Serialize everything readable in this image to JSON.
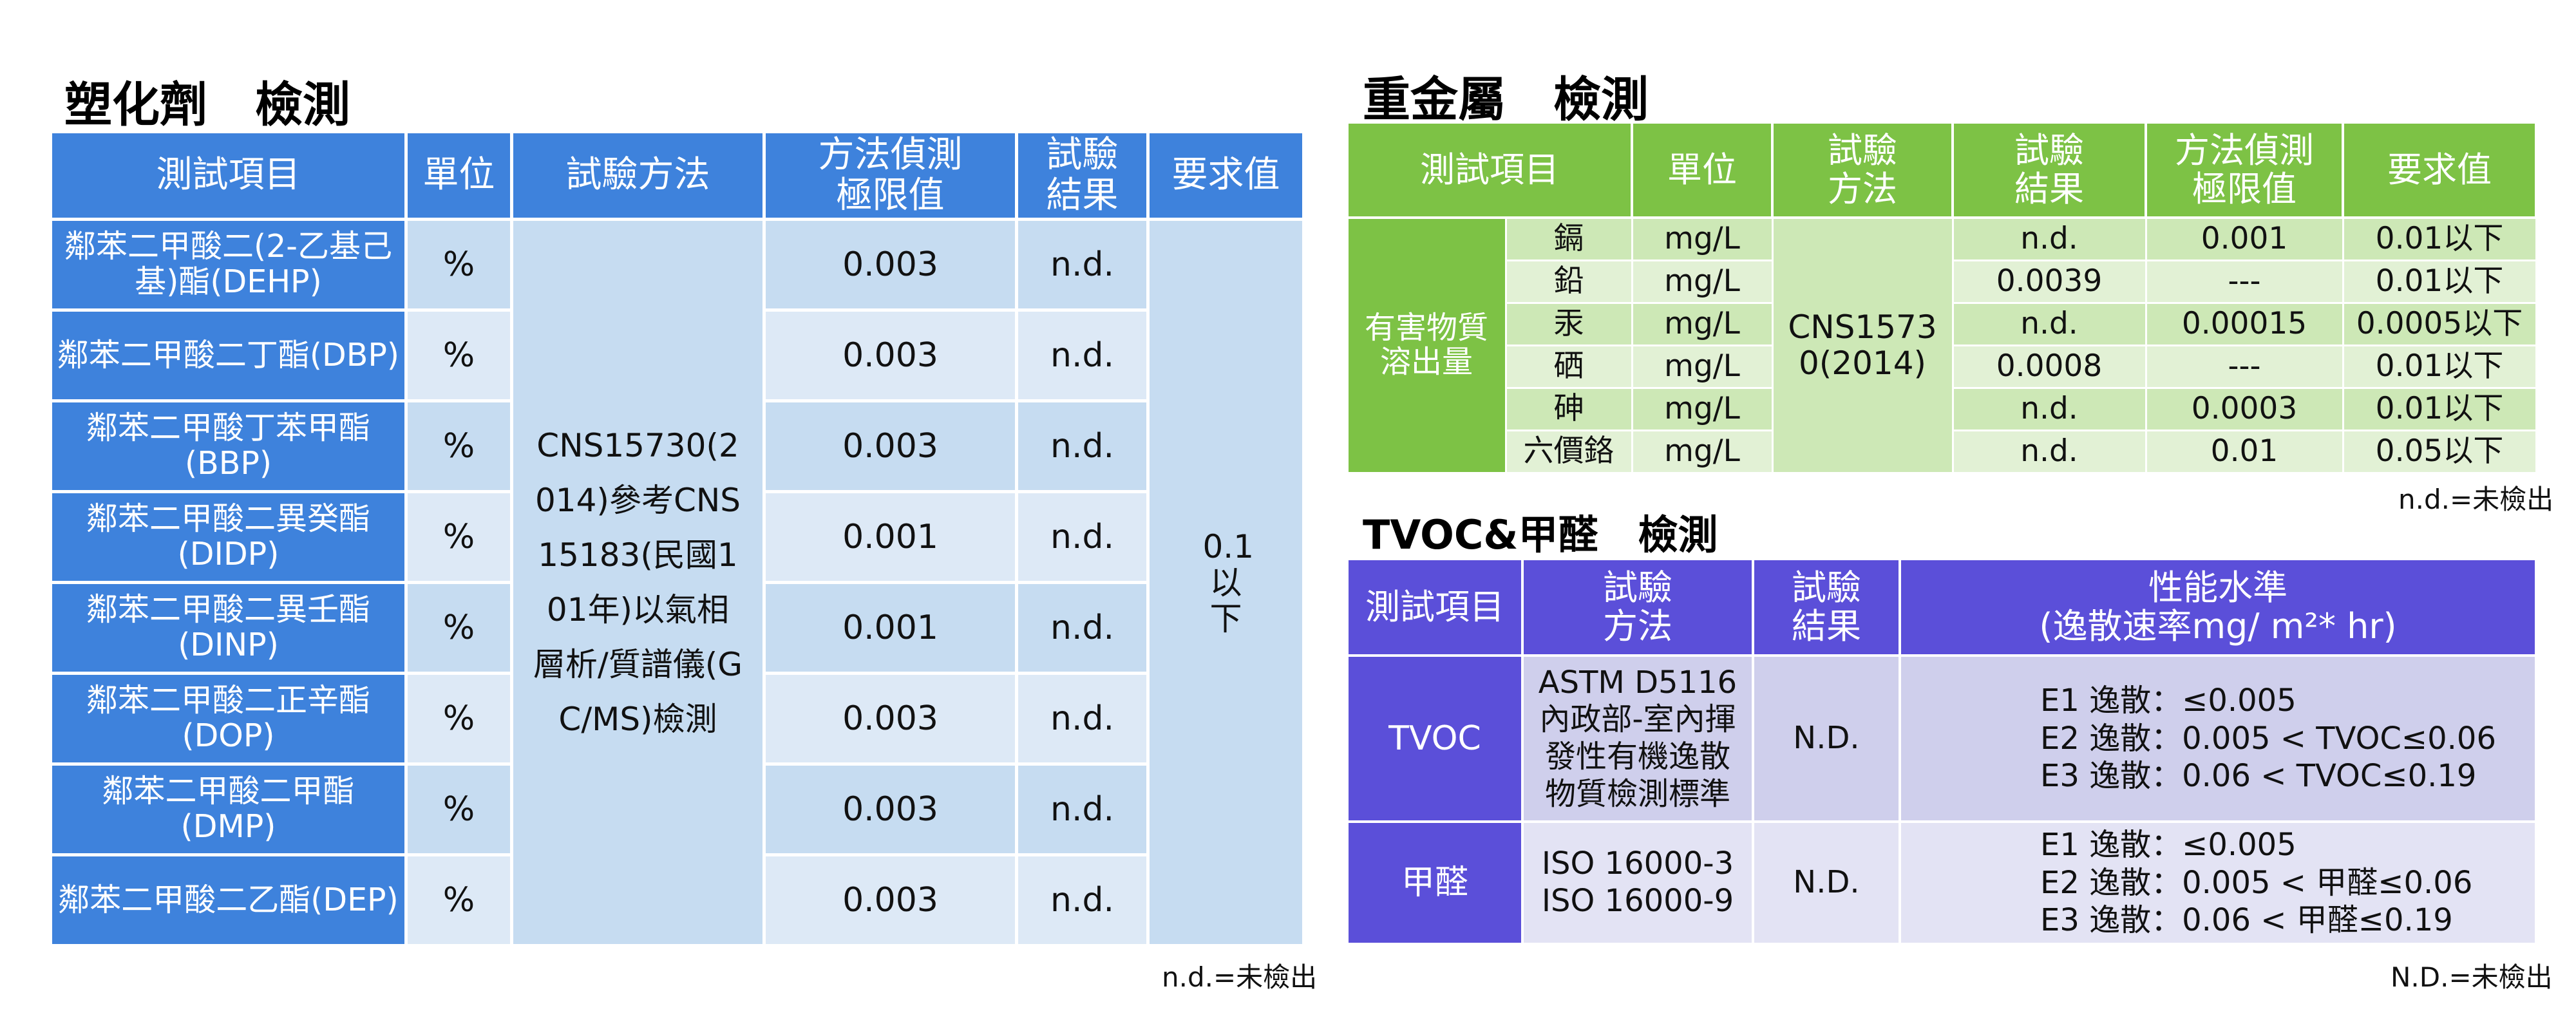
{
  "plasticizer": {
    "title": "塑化劑　檢測",
    "headers": [
      "測試項目",
      "單位",
      "試驗方法",
      "方法偵測極限值",
      "試驗結果",
      "要求值"
    ],
    "rows": [
      {
        "item": "鄰苯二甲酸二(2-乙基己基)酯(DEHP)",
        "unit": "%",
        "limit": "0.003",
        "result": "n.d."
      },
      {
        "item": "鄰苯二甲酸二丁酯(DBP)",
        "unit": "%",
        "limit": "0.003",
        "result": "n.d."
      },
      {
        "item": "鄰苯二甲酸丁苯甲酯(BBP)",
        "unit": "%",
        "limit": "0.003",
        "result": "n.d."
      },
      {
        "item": "鄰苯二甲酸二異癸酯(DIDP)",
        "unit": "%",
        "limit": "0.001",
        "result": "n.d."
      },
      {
        "item": "鄰苯二甲酸二異壬酯(DINP)",
        "unit": "%",
        "limit": "0.001",
        "result": "n.d."
      },
      {
        "item": "鄰苯二甲酸二正辛酯(DOP)",
        "unit": "%",
        "limit": "0.003",
        "result": "n.d."
      },
      {
        "item": "鄰苯二甲酸二甲酯(DMP)",
        "unit": "%",
        "limit": "0.003",
        "result": "n.d."
      },
      {
        "item": "鄰苯二甲酸二乙酯(DEP)",
        "unit": "%",
        "limit": "0.003",
        "result": "n.d."
      }
    ],
    "method": "CNS15730(2014)參考CNS15183(民國101年)以氣相層析/質譜儀(GC/MS)檢測",
    "requirement": "0.1以下",
    "note": "n.d.=未檢出"
  },
  "heavy_metal": {
    "title": "重金屬　檢測",
    "headers": [
      "測試項目",
      "單位",
      "試驗方法",
      "試驗結果",
      "方法偵測極限值",
      "要求值"
    ],
    "group_label": "有害物質溶出量",
    "method": "CNS15730(2014)",
    "rows": [
      {
        "item": "鎘",
        "unit": "mg/L",
        "result": "n.d.",
        "limit": "0.001",
        "requirement": "0.01以下"
      },
      {
        "item": "鉛",
        "unit": "mg/L",
        "result": "0.0039",
        "limit": "---",
        "requirement": "0.01以下"
      },
      {
        "item": "汞",
        "unit": "mg/L",
        "result": "n.d.",
        "limit": "0.00015",
        "requirement": "0.0005以下"
      },
      {
        "item": "硒",
        "unit": "mg/L",
        "result": "0.0008",
        "limit": "---",
        "requirement": "0.01以下"
      },
      {
        "item": "砷",
        "unit": "mg/L",
        "result": "n.d.",
        "limit": "0.0003",
        "requirement": "0.01以下"
      },
      {
        "item": "六價鉻",
        "unit": "mg/L",
        "result": "n.d.",
        "limit": "0.01",
        "requirement": "0.05以下"
      }
    ],
    "note": "n.d.=未檢出"
  },
  "tvoc": {
    "title": "TVOC&甲醛　檢測",
    "headers": [
      "測試項目",
      "試驗方法",
      "試驗結果",
      "性能水準",
      "(逸散速率mg/ m²* hr)"
    ],
    "rows": [
      {
        "item": "TVOC",
        "method": [
          "ASTM D5116",
          "內政部-室內揮",
          "發性有機逸散",
          "物質檢測標準"
        ],
        "result": "N.D.",
        "performance": [
          "E1 逸散：≤0.005",
          "E2 逸散：0.005 < TVOC≤0.06",
          "E3 逸散：0.06 < TVOC≤0.19"
        ]
      },
      {
        "item": "甲醛",
        "method": [
          "ISO 16000-3",
          "ISO 16000-9"
        ],
        "result": "N.D.",
        "performance": [
          "E1 逸散：≤0.005",
          "E2 逸散：0.005 < 甲醛≤0.06",
          "E3 逸散：0.06 < 甲醛≤0.19"
        ]
      }
    ],
    "note": "N.D.=未檢出"
  }
}
